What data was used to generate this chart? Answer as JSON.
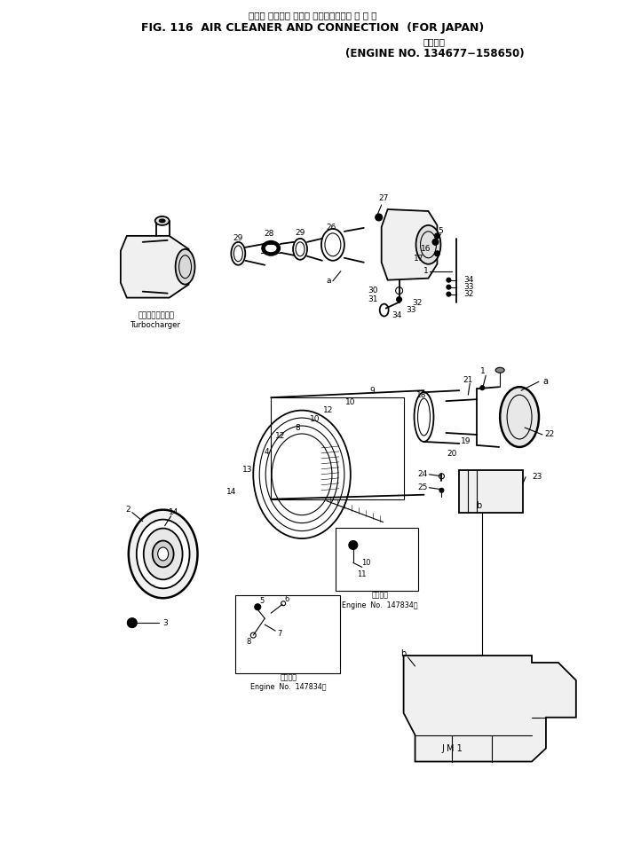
{
  "title_jp1": "エアー クリーナ および コネクション　 国 内 向",
  "title_en": "FIG. 116  AIR CLEANER AND CONNECTION  (FOR JAPAN)",
  "title_jp2": "適用号機",
  "title_sub": "(ENGINE NO. 134677−158650)",
  "bg_color": "#ffffff",
  "fig_width": 7.04,
  "fig_height": 9.74,
  "dpi": 100
}
